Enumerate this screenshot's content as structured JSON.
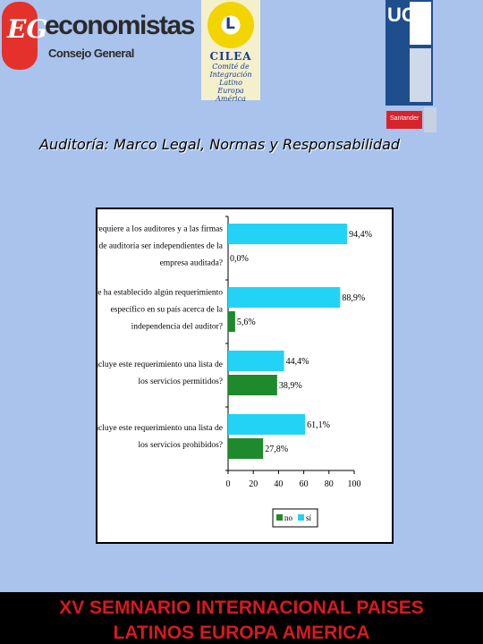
{
  "header": {
    "logo_economistas": {
      "badge": "EG",
      "word": "economistas",
      "sub": "Consejo General"
    },
    "logo_cilea": {
      "mark": "L",
      "name": "CILEA",
      "desc_lines": [
        "Comité de",
        "Integración",
        "Latino",
        "Europa",
        "América"
      ]
    },
    "logo_uc": {
      "letters": "UC"
    },
    "logo_santander": {
      "text": "Santander"
    }
  },
  "slide": {
    "title": "Auditoría: Marco Legal, Normas y Responsabilidad"
  },
  "chart_data": {
    "type": "bar",
    "orientation": "horizontal",
    "categories": [
      [
        "¿Se requiere a los auditores y a las firmas",
        "de auditoría ser independientes de la",
        "empresa auditada?"
      ],
      [
        "¿Se ha establecido algún requerimiento",
        "específico en su país acerca de la",
        "independencia del auditor?"
      ],
      [
        "¿Incluye este requerimiento una lista de",
        "los servicios permitidos?"
      ],
      [
        "¿Incluye este requerimiento una lista de",
        "los servicios prohibidos?"
      ]
    ],
    "series": [
      {
        "name": "sí",
        "values": [
          94.4,
          88.9,
          44.4,
          61.1
        ],
        "labels": [
          "94,4%",
          "88,9%",
          "44,4%",
          "61,1%"
        ],
        "color": "#22d3f5"
      },
      {
        "name": "no",
        "values": [
          0.0,
          5.6,
          38.9,
          27.8
        ],
        "labels": [
          "0,0%",
          "5,6%",
          "38,9%",
          "27,8%"
        ],
        "color": "#1e8a2c"
      }
    ],
    "xlim": [
      0,
      100
    ],
    "xticks": [
      0,
      20,
      40,
      60,
      80,
      100
    ],
    "legend_position": "bottom",
    "legend_order": [
      "no",
      "sí"
    ]
  },
  "footer": {
    "line1": "XV SEMNARIO INTERNACIONAL PAISES",
    "line2": "LATINOS EUROPA AMERICA"
  },
  "colors": {
    "background": "#a9c3ec",
    "footer_bg": "#000000",
    "footer_text": "#d8191e"
  }
}
